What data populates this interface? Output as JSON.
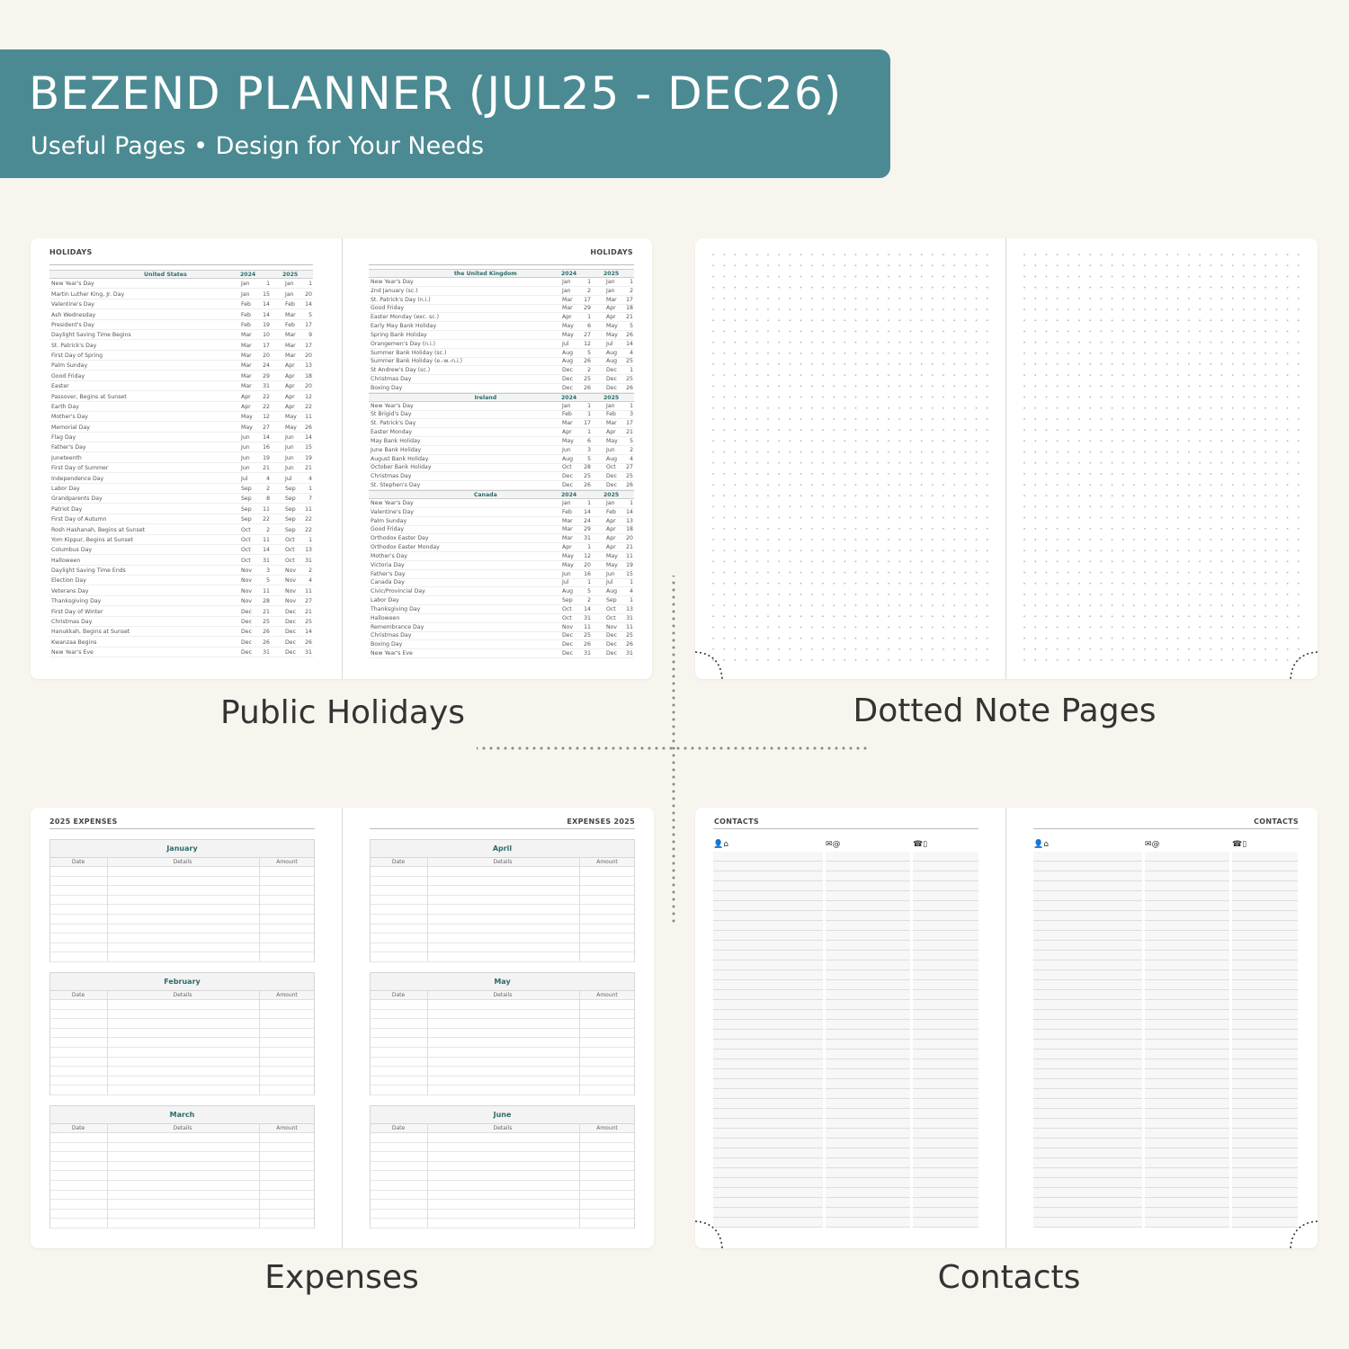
{
  "banner": {
    "title": "BEZEND PLANNER (JUL25 - DEC26)",
    "subtitle": "Useful Pages  •  Design for Your Needs",
    "color": "#4b8a92"
  },
  "captions": {
    "holidays": "Public Holidays",
    "dotted": "Dotted Note Pages",
    "expenses": "Expenses",
    "contacts": "Contacts"
  },
  "holidays": {
    "left_title": "HOLIDAYS",
    "right_title": "HOLIDAYS",
    "year_a": "2024",
    "year_b": "2025",
    "left": [
      {
        "country": "United States",
        "rows": [
          [
            "New Year's Day",
            "Jan",
            "1",
            "Jan",
            "1"
          ],
          [
            "Martin Luther King, Jr. Day",
            "Jan",
            "15",
            "Jan",
            "20"
          ],
          [
            "Valentine's Day",
            "Feb",
            "14",
            "Feb",
            "14"
          ],
          [
            "Ash Wednesday",
            "Feb",
            "14",
            "Mar",
            "5"
          ],
          [
            "President's Day",
            "Feb",
            "19",
            "Feb",
            "17"
          ],
          [
            "Daylight Saving Time Begins",
            "Mar",
            "10",
            "Mar",
            "9"
          ],
          [
            "St. Patrick's Day",
            "Mar",
            "17",
            "Mar",
            "17"
          ],
          [
            "First Day of Spring",
            "Mar",
            "20",
            "Mar",
            "20"
          ],
          [
            "Palm Sunday",
            "Mar",
            "24",
            "Apr",
            "13"
          ],
          [
            "Good Friday",
            "Mar",
            "29",
            "Apr",
            "18"
          ],
          [
            "Easter",
            "Mar",
            "31",
            "Apr",
            "20"
          ],
          [
            "Passover, Begins at Sunset",
            "Apr",
            "22",
            "Apr",
            "12"
          ],
          [
            "Earth Day",
            "Apr",
            "22",
            "Apr",
            "22"
          ],
          [
            "Mother's Day",
            "May",
            "12",
            "May",
            "11"
          ],
          [
            "Memorial Day",
            "May",
            "27",
            "May",
            "26"
          ],
          [
            "Flag Day",
            "Jun",
            "14",
            "Jun",
            "14"
          ],
          [
            "Father's Day",
            "Jun",
            "16",
            "Jun",
            "15"
          ],
          [
            "Juneteenth",
            "Jun",
            "19",
            "Jun",
            "19"
          ],
          [
            "First Day of Summer",
            "Jun",
            "21",
            "Jun",
            "21"
          ],
          [
            "Independence Day",
            "Jul",
            "4",
            "Jul",
            "4"
          ],
          [
            "Labor Day",
            "Sep",
            "2",
            "Sep",
            "1"
          ],
          [
            "Grandparents Day",
            "Sep",
            "8",
            "Sep",
            "7"
          ],
          [
            "Patriot Day",
            "Sep",
            "11",
            "Sep",
            "11"
          ],
          [
            "First Day of Autumn",
            "Sep",
            "22",
            "Sep",
            "22"
          ],
          [
            "Rosh Hashanah, Begins at Sunset",
            "Oct",
            "2",
            "Sep",
            "22"
          ],
          [
            "Yom Kippur, Begins at Sunset",
            "Oct",
            "11",
            "Oct",
            "1"
          ],
          [
            "Columbus Day",
            "Oct",
            "14",
            "Oct",
            "13"
          ],
          [
            "Halloween",
            "Oct",
            "31",
            "Oct",
            "31"
          ],
          [
            "Daylight Saving Time Ends",
            "Nov",
            "3",
            "Nov",
            "2"
          ],
          [
            "Election Day",
            "Nov",
            "5",
            "Nov",
            "4"
          ],
          [
            "Veterans Day",
            "Nov",
            "11",
            "Nov",
            "11"
          ],
          [
            "Thanksgiving Day",
            "Nov",
            "28",
            "Nov",
            "27"
          ],
          [
            "First Day of Winter",
            "Dec",
            "21",
            "Dec",
            "21"
          ],
          [
            "Christmas Day",
            "Dec",
            "25",
            "Dec",
            "25"
          ],
          [
            "Hanukkah, Begins at Sunset",
            "Dec",
            "26",
            "Dec",
            "14"
          ],
          [
            "Kwanzaa Begins",
            "Dec",
            "26",
            "Dec",
            "26"
          ],
          [
            "New Year's Eve",
            "Dec",
            "31",
            "Dec",
            "31"
          ]
        ]
      }
    ],
    "right": [
      {
        "country": "the United Kingdom",
        "rows": [
          [
            "New Year's Day",
            "Jan",
            "1",
            "Jan",
            "1"
          ],
          [
            "2nd January (sc.)",
            "Jan",
            "2",
            "Jan",
            "2"
          ],
          [
            "St. Patrick's Day (n.i.)",
            "Mar",
            "17",
            "Mar",
            "17"
          ],
          [
            "Good Friday",
            "Mar",
            "29",
            "Apr",
            "18"
          ],
          [
            "Easter Monday (exc. sc.)",
            "Apr",
            "1",
            "Apr",
            "21"
          ],
          [
            "Early May Bank Holiday",
            "May",
            "6",
            "May",
            "5"
          ],
          [
            "Spring Bank Holiday",
            "May",
            "27",
            "May",
            "26"
          ],
          [
            "Orangemen's Day (n.i.)",
            "Jul",
            "12",
            "Jul",
            "14"
          ],
          [
            "Summer Bank Holiday (sc.)",
            "Aug",
            "5",
            "Aug",
            "4"
          ],
          [
            "Summer Bank Holiday (e.-w.-n.i.)",
            "Aug",
            "26",
            "Aug",
            "25"
          ],
          [
            "St Andrew's Day (sc.)",
            "Dec",
            "2",
            "Dec",
            "1"
          ],
          [
            "Christmas Day",
            "Dec",
            "25",
            "Dec",
            "25"
          ],
          [
            "Boxing Day",
            "Dec",
            "26",
            "Dec",
            "26"
          ]
        ]
      },
      {
        "country": "Ireland",
        "rows": [
          [
            "New Year's Day",
            "Jan",
            "1",
            "Jan",
            "1"
          ],
          [
            "St Brigid's Day",
            "Feb",
            "1",
            "Feb",
            "3"
          ],
          [
            "St. Patrick's Day",
            "Mar",
            "17",
            "Mar",
            "17"
          ],
          [
            "Easter Monday",
            "Apr",
            "1",
            "Apr",
            "21"
          ],
          [
            "May Bank Holiday",
            "May",
            "6",
            "May",
            "5"
          ],
          [
            "June Bank Holiday",
            "Jun",
            "3",
            "Jun",
            "2"
          ],
          [
            "August Bank Holiday",
            "Aug",
            "5",
            "Aug",
            "4"
          ],
          [
            "October Bank Holiday",
            "Oct",
            "28",
            "Oct",
            "27"
          ],
          [
            "Christmas Day",
            "Dec",
            "25",
            "Dec",
            "25"
          ],
          [
            "St. Stephen's Day",
            "Dec",
            "26",
            "Dec",
            "26"
          ]
        ]
      },
      {
        "country": "Canada",
        "rows": [
          [
            "New Year's Day",
            "Jan",
            "1",
            "Jan",
            "1"
          ],
          [
            "Valentine's Day",
            "Feb",
            "14",
            "Feb",
            "14"
          ],
          [
            "Palm Sunday",
            "Mar",
            "24",
            "Apr",
            "13"
          ],
          [
            "Good Friday",
            "Mar",
            "29",
            "Apr",
            "18"
          ],
          [
            "Orthodox Easter Day",
            "Mar",
            "31",
            "Apr",
            "20"
          ],
          [
            "Orthodox Easter Monday",
            "Apr",
            "1",
            "Apr",
            "21"
          ],
          [
            "Mother's Day",
            "May",
            "12",
            "May",
            "11"
          ],
          [
            "Victoria Day",
            "May",
            "20",
            "May",
            "19"
          ],
          [
            "Father's Day",
            "Jun",
            "16",
            "Jun",
            "15"
          ],
          [
            "Canada Day",
            "Jul",
            "1",
            "Jul",
            "1"
          ],
          [
            "Civic/Provincial Day",
            "Aug",
            "5",
            "Aug",
            "4"
          ],
          [
            "Labor Day",
            "Sep",
            "2",
            "Sep",
            "1"
          ],
          [
            "Thanksgiving Day",
            "Oct",
            "14",
            "Oct",
            "13"
          ],
          [
            "Halloween",
            "Oct",
            "31",
            "Oct",
            "31"
          ],
          [
            "Remembrance Day",
            "Nov",
            "11",
            "Nov",
            "11"
          ],
          [
            "Christmas Day",
            "Dec",
            "25",
            "Dec",
            "25"
          ],
          [
            "Boxing Day",
            "Dec",
            "26",
            "Dec",
            "26"
          ],
          [
            "New Year's Eve",
            "Dec",
            "31",
            "Dec",
            "31"
          ]
        ]
      }
    ]
  },
  "expenses": {
    "left_title": "2025 EXPENSES",
    "right_title": "EXPENSES 2025",
    "columns": [
      "Date",
      "Details",
      "Amount"
    ],
    "left_months": [
      "January",
      "February",
      "March"
    ],
    "right_months": [
      "April",
      "May",
      "June"
    ]
  },
  "contacts": {
    "left_title": "CONTACTS",
    "right_title": "CONTACTS",
    "column_icons": [
      "person-home-icon",
      "mail-at-icon",
      "phone-mobile-icon"
    ]
  },
  "colors": {
    "background": "#f8f5ee",
    "accent": "#2e6b6b"
  }
}
